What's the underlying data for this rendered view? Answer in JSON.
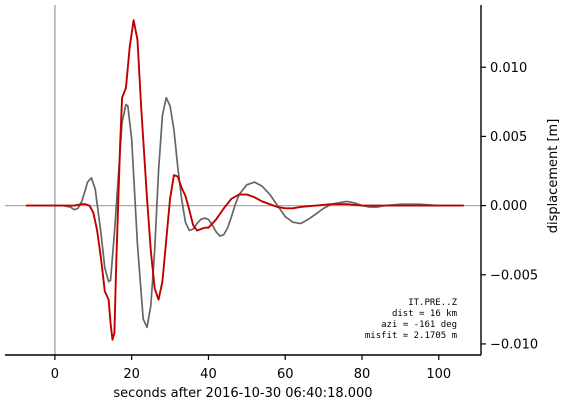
{
  "chart_data": {
    "type": "line",
    "xlabel": "seconds after 2016-10-30 06:40:18.000",
    "ylabel": "displacement [m]",
    "xlim": [
      -13,
      111
    ],
    "ylim": [
      -0.0108,
      0.0145
    ],
    "x_ticks": [
      0,
      20,
      40,
      60,
      80,
      100
    ],
    "y_ticks": [
      -0.01,
      -0.005,
      0.0,
      0.005,
      0.01
    ],
    "y_tick_labels": [
      "−0.010",
      "−0.005",
      "0.000",
      "0.005",
      "0.010"
    ],
    "y_axis_side": "right",
    "reference_lines": {
      "vertical_x": 0,
      "horizontal_y": 0,
      "color": "#aaaaaa"
    },
    "annotation_lines": [
      "IT.PRE..Z",
      "dist = 16 km",
      "azi = -161 deg",
      "misfit = 2.1705 m"
    ],
    "series": [
      {
        "color": "#666666",
        "x": [
          -7.5,
          2,
          4,
          5,
          6,
          7,
          8,
          8.5,
          9.5,
          10.5,
          12,
          13,
          14,
          14.5,
          15.5,
          16.5,
          17.5,
          18.5,
          19,
          20,
          21.5,
          23,
          24,
          25,
          26,
          27,
          28,
          29,
          30,
          31,
          32,
          33,
          34,
          35,
          36,
          37,
          38,
          39,
          40,
          41,
          42,
          43,
          44,
          45,
          46,
          47,
          48,
          50,
          52,
          54,
          56,
          58,
          60,
          62,
          64,
          66,
          68,
          70,
          72,
          74,
          76,
          78,
          80,
          82,
          84,
          86,
          90,
          95,
          100,
          106.5
        ],
        "y": [
          0,
          0,
          -0.0001,
          -0.0003,
          -0.0002,
          0.0003,
          0.0012,
          0.0017,
          0.002,
          0.0012,
          -0.002,
          -0.0045,
          -0.0055,
          -0.0054,
          -0.002,
          0.002,
          0.006,
          0.0073,
          0.0072,
          0.0048,
          -0.0028,
          -0.0082,
          -0.0088,
          -0.0072,
          -0.0032,
          0.0025,
          0.0065,
          0.0078,
          0.0072,
          0.0055,
          0.0028,
          0.0005,
          -0.0012,
          -0.0018,
          -0.0017,
          -0.0013,
          -0.001,
          -0.0009,
          -0.001,
          -0.0014,
          -0.0019,
          -0.0022,
          -0.0021,
          -0.0016,
          -0.0008,
          0.0001,
          0.0008,
          0.0015,
          0.0017,
          0.0014,
          0.0008,
          0,
          -0.0008,
          -0.0012,
          -0.0013,
          -0.001,
          -0.0006,
          -0.0002,
          0.0001,
          0.0002,
          0.0003,
          0.0002,
          0,
          -0.0001,
          -0.0001,
          0,
          0.0001,
          0.0001,
          0,
          0
        ]
      },
      {
        "color": "#c00000",
        "x": [
          -7.5,
          5,
          7,
          8,
          9,
          10,
          11,
          12,
          13,
          13.5,
          14,
          14.5,
          15,
          15.5,
          16,
          17,
          17.5,
          18.5,
          19.5,
          20.5,
          21.5,
          22.5,
          24,
          25,
          26,
          27,
          28,
          29,
          30,
          31,
          32,
          33,
          34,
          35,
          36,
          37,
          38,
          39,
          40,
          42,
          44,
          46,
          48,
          50,
          52,
          54,
          56,
          58,
          60,
          62,
          64,
          68,
          72,
          76,
          80,
          84,
          90,
          95,
          100,
          106.5
        ],
        "y": [
          0,
          0,
          0.0001,
          0.0001,
          0,
          -0.0005,
          -0.0018,
          -0.0038,
          -0.0062,
          -0.0065,
          -0.0068,
          -0.0085,
          -0.0097,
          -0.0092,
          -0.004,
          0.0045,
          0.0078,
          0.0085,
          0.0115,
          0.0134,
          0.012,
          0.007,
          0.0005,
          -0.0033,
          -0.006,
          -0.0068,
          -0.0055,
          -0.0025,
          0.0005,
          0.0022,
          0.0021,
          0.0013,
          0.0007,
          -0.0003,
          -0.0014,
          -0.0018,
          -0.0017,
          -0.0016,
          -0.0016,
          -0.001,
          -0.0002,
          0.0005,
          0.0008,
          0.0008,
          0.0006,
          0.0003,
          0.0001,
          -0.0001,
          -0.0002,
          -0.0002,
          -0.0001,
          0,
          0.0001,
          0.0001,
          0,
          0,
          0,
          0,
          0,
          0
        ]
      }
    ]
  }
}
